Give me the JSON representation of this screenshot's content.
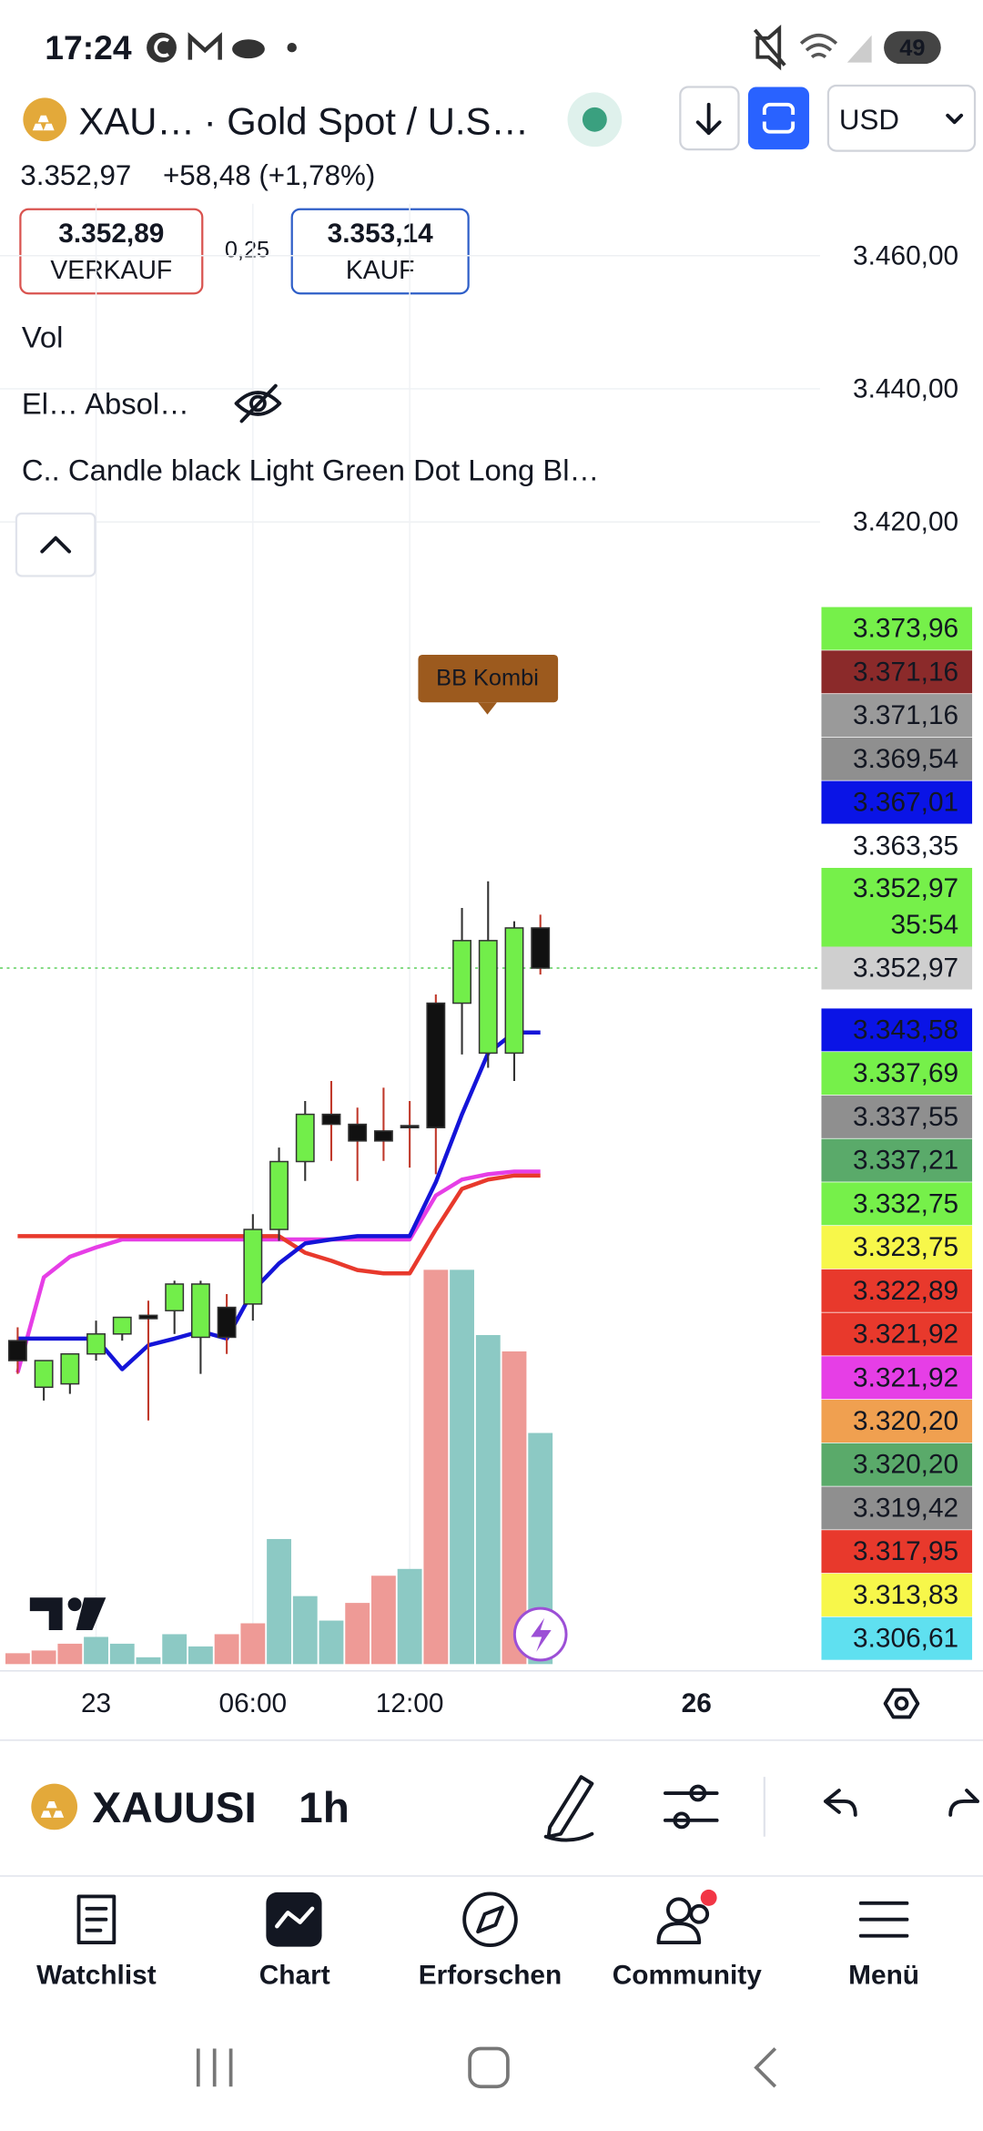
{
  "status_bar": {
    "time": "17:24",
    "battery": "49"
  },
  "header": {
    "symbol": "XAU…",
    "name": "· Gold Spot / U.S…",
    "currency": "USD",
    "price": "3.352,97",
    "change": "+58,48 (+1,78%)"
  },
  "trade": {
    "sell_price": "3.352,89",
    "sell_label": "VERKAUF",
    "spread": "0,25",
    "buy_price": "3.353,14",
    "buy_label": "KAUF"
  },
  "indicators": [
    "Vol",
    "El… Absol…",
    "C.. Candle black Light Green Dot Long Bl…"
  ],
  "chart_data": {
    "type": "candlestick",
    "categories": [
      null,
      null,
      null,
      "23",
      null,
      null,
      null,
      null,
      null,
      "06:00",
      null,
      null,
      null,
      null,
      null,
      "12:00",
      null,
      null,
      null,
      null,
      null
    ],
    "x_end_label": "26",
    "open": [
      3297,
      3290,
      3290.5,
      3295,
      3298,
      3300.8,
      3301.5,
      3297.5,
      3302,
      3302.5,
      3313.7,
      3323.9,
      3331,
      3329.5,
      3328.5,
      3329.3,
      3347.7,
      3347.7,
      3340.2,
      3340.2,
      3359
    ],
    "high": [
      3299,
      3293,
      3293,
      3300,
      3300,
      3303,
      3306,
      3306,
      3304,
      3316,
      3326,
      3333,
      3336,
      3332,
      3335,
      3333,
      3349,
      3362,
      3366,
      3360,
      3361
    ],
    "low": [
      3292,
      3288,
      3289,
      3294,
      3297,
      3285,
      3298,
      3292,
      3295,
      3300,
      3312,
      3321,
      3324,
      3321,
      3324,
      3323,
      3322,
      3340,
      3338,
      3336,
      3352
    ],
    "close": [
      3294,
      3294,
      3295,
      3298,
      3300.5,
      3300.3,
      3305.5,
      3305.5,
      3297.5,
      3313.7,
      3323.9,
      3331,
      3329.5,
      3327,
      3327,
      3329,
      3329,
      3357.1,
      3357.1,
      3359,
      3352.97
    ],
    "up_color": "#72ee4a",
    "down_color": "#111111",
    "volume": [
      8,
      10,
      15,
      20,
      15,
      5,
      22,
      13,
      22,
      30,
      92,
      50,
      32,
      45,
      65,
      70,
      290,
      290,
      242,
      230,
      170
    ],
    "volume_colors": [
      "#ee9a96",
      "#ee9a96",
      "#ee9a96",
      "#8cc9c4",
      "#8cc9c4",
      "#8cc9c4",
      "#8cc9c4",
      "#8cc9c4",
      "#ee9a96",
      "#ee9a96",
      "#8cc9c4",
      "#8cc9c4",
      "#8cc9c4",
      "#ee9a96",
      "#ee9a96",
      "#8cc9c4",
      "#ee9a96",
      "#8cc9c4",
      "#8cc9c4",
      "#ee9a96",
      "#8cc9c4"
    ],
    "lines": [
      {
        "color": "#e63ee6",
        "values": [
          3292.2,
          3306.5,
          3309.6,
          3311.0,
          3312.2,
          3312.2,
          3312.2,
          3312.2,
          3312.2,
          3312.2,
          3312.2,
          3312.2,
          3312.2,
          3312.2,
          3312.2,
          3312.2,
          3318.8,
          3321.2,
          3322.0,
          3322.4,
          3322.4
        ]
      },
      {
        "color": "#e8392c",
        "values": [
          3312.7,
          3312.7,
          3312.7,
          3312.7,
          3312.7,
          3312.7,
          3312.7,
          3312.7,
          3312.7,
          3312.7,
          3312.7,
          3310.2,
          3309.0,
          3307.6,
          3307.1,
          3307.1,
          3313.7,
          3319.8,
          3321.2,
          3321.8,
          3321.8
        ]
      },
      {
        "color": "#1414d8",
        "values": [
          3297.3,
          3297.3,
          3297.3,
          3297.3,
          3292.7,
          3296.3,
          3297.3,
          3298.4,
          3297.3,
          3304.5,
          3308.6,
          3311.6,
          3312.2,
          3312.7,
          3312.7,
          3312.7,
          3320.8,
          3331.0,
          3340.2,
          3343.3,
          3343.3
        ]
      }
    ],
    "annotation": "BB Kombi",
    "ylim": [
      3248.4,
      3467.8
    ],
    "yticks": [
      {
        "value": 3460,
        "label": "3.460,00"
      },
      {
        "value": 3440,
        "label": "3.440,00"
      },
      {
        "value": 3420,
        "label": "3.420,00"
      }
    ],
    "grid": true,
    "price_tags": [
      {
        "value": 3373.96,
        "label": "3.373,96",
        "color": "#76f04a",
        "text_color": "#131722"
      },
      {
        "value": 3371.16,
        "label": "3.371,16",
        "color": "#8b2a2a",
        "text_color": "#ffffff"
      },
      {
        "value": 3371.16,
        "label": "3.371,16",
        "color": "#9a9a9a",
        "text_color": "#ffffff"
      },
      {
        "value": 3369.54,
        "label": "3.369,54",
        "color": "#8f8f8f",
        "text_color": "#ffffff"
      },
      {
        "value": 3367.01,
        "label": "3.367,01",
        "color": "#0a14e6",
        "text_color": "#ffffff"
      },
      {
        "value": 3363.35,
        "label": "3.363,35",
        "color": "#ffffff",
        "text_color": "#131722"
      },
      {
        "value": 3352.97,
        "label": "3.352,97",
        "countdown": "35:54",
        "color": "#76f04a",
        "text_color": "#131722"
      },
      {
        "value": 3352.97,
        "label": "3.352,97",
        "color": "#cfcfcf",
        "text_color": "#131722"
      },
      {
        "value": 3343.58,
        "label": "3.343,58",
        "color": "#0a14e6",
        "text_color": "#ffffff"
      },
      {
        "value": 3337.69,
        "label": "3.337,69",
        "color": "#76f04a",
        "text_color": "#131722"
      },
      {
        "value": 3337.55,
        "label": "3.337,55",
        "color": "#8f8f8f",
        "text_color": "#ffffff"
      },
      {
        "value": 3337.21,
        "label": "3.337,21",
        "color": "#5aaa6a",
        "text_color": "#ffffff"
      },
      {
        "value": 3332.75,
        "label": "3.332,75",
        "color": "#76f04a",
        "text_color": "#131722"
      },
      {
        "value": 3323.75,
        "label": "3.323,75",
        "color": "#f7f74a",
        "text_color": "#131722"
      },
      {
        "value": 3322.89,
        "label": "3.322,89",
        "color": "#e8392c",
        "text_color": "#ffffff"
      },
      {
        "value": 3321.92,
        "label": "3.321,92",
        "color": "#e8392c",
        "text_color": "#ffffff"
      },
      {
        "value": 3321.92,
        "label": "3.321,92",
        "color": "#e63ee6",
        "text_color": "#ffffff"
      },
      {
        "value": 3320.2,
        "label": "3.320,20",
        "color": "#f0a050",
        "text_color": "#131722"
      },
      {
        "value": 3320.2,
        "label": "3.320,20",
        "color": "#5aaa6a",
        "text_color": "#ffffff"
      },
      {
        "value": 3319.42,
        "label": "3.319,42",
        "color": "#8f8f8f",
        "text_color": "#ffffff"
      },
      {
        "value": 3317.95,
        "label": "3.317,95",
        "color": "#e8392c",
        "text_color": "#ffffff"
      },
      {
        "value": 3313.83,
        "label": "3.313,83",
        "color": "#f7f74a",
        "text_color": "#131722"
      },
      {
        "value": 3306.61,
        "label": "3.306,61",
        "color": "#5fe0f0",
        "text_color": "#131722"
      }
    ]
  },
  "toolbar": {
    "symbol": "XAUUSI",
    "interval": "1h"
  },
  "nav": [
    "Watchlist",
    "Chart",
    "Erforschen",
    "Community",
    "Menü"
  ]
}
